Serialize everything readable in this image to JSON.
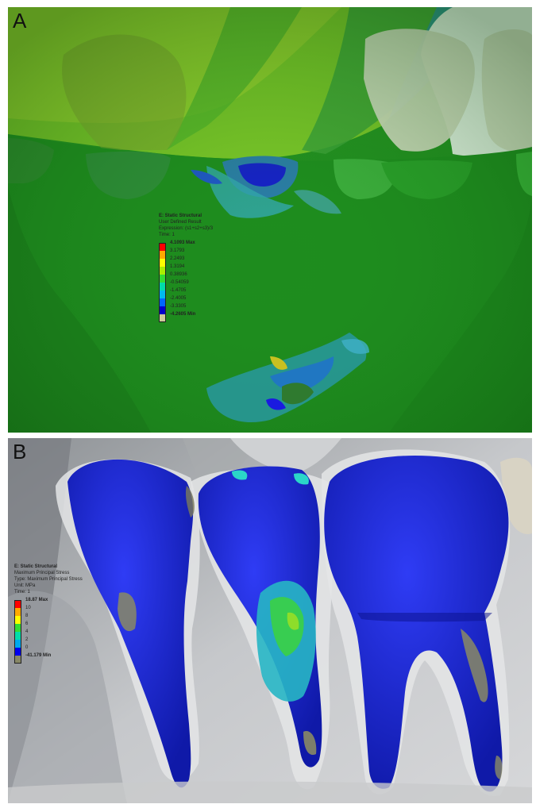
{
  "panel_a": {
    "letter": "A",
    "legend": {
      "title": "E: Static Structural",
      "subtitle": "User Defined Result",
      "expression": "Expression: (s1+s2+s3)/3",
      "time": "Time: 1",
      "labels": [
        "4.1093 Max",
        "3.1793",
        "2.2493",
        "1.3194",
        "0.38936",
        "-0.54059",
        "-1.4705",
        "-2.4005",
        "-3.3305",
        "-4.2605 Min"
      ],
      "colors": [
        "#ff0000",
        "#ffaa00",
        "#ffff00",
        "#aaee00",
        "#33dd33",
        "#00ddaa",
        "#00bbee",
        "#0066ff",
        "#0000cc",
        "#cccc99"
      ]
    }
  },
  "panel_b": {
    "letter": "B",
    "legend": {
      "title": "E: Static Structural",
      "subtitle": "Maximum Principal Stress",
      "type": "Type: Maximum Principal Stress",
      "unit": "Unit: MPa",
      "time": "Time: 1",
      "labels": [
        "18.87 Max",
        "10",
        "8",
        "6",
        "4",
        "2",
        "0",
        "-41.179 Min"
      ],
      "colors": [
        "#ff0000",
        "#ffaa00",
        "#ffff00",
        "#33dd33",
        "#00ddaa",
        "#00aaee",
        "#0000ee",
        "#888866"
      ]
    }
  }
}
